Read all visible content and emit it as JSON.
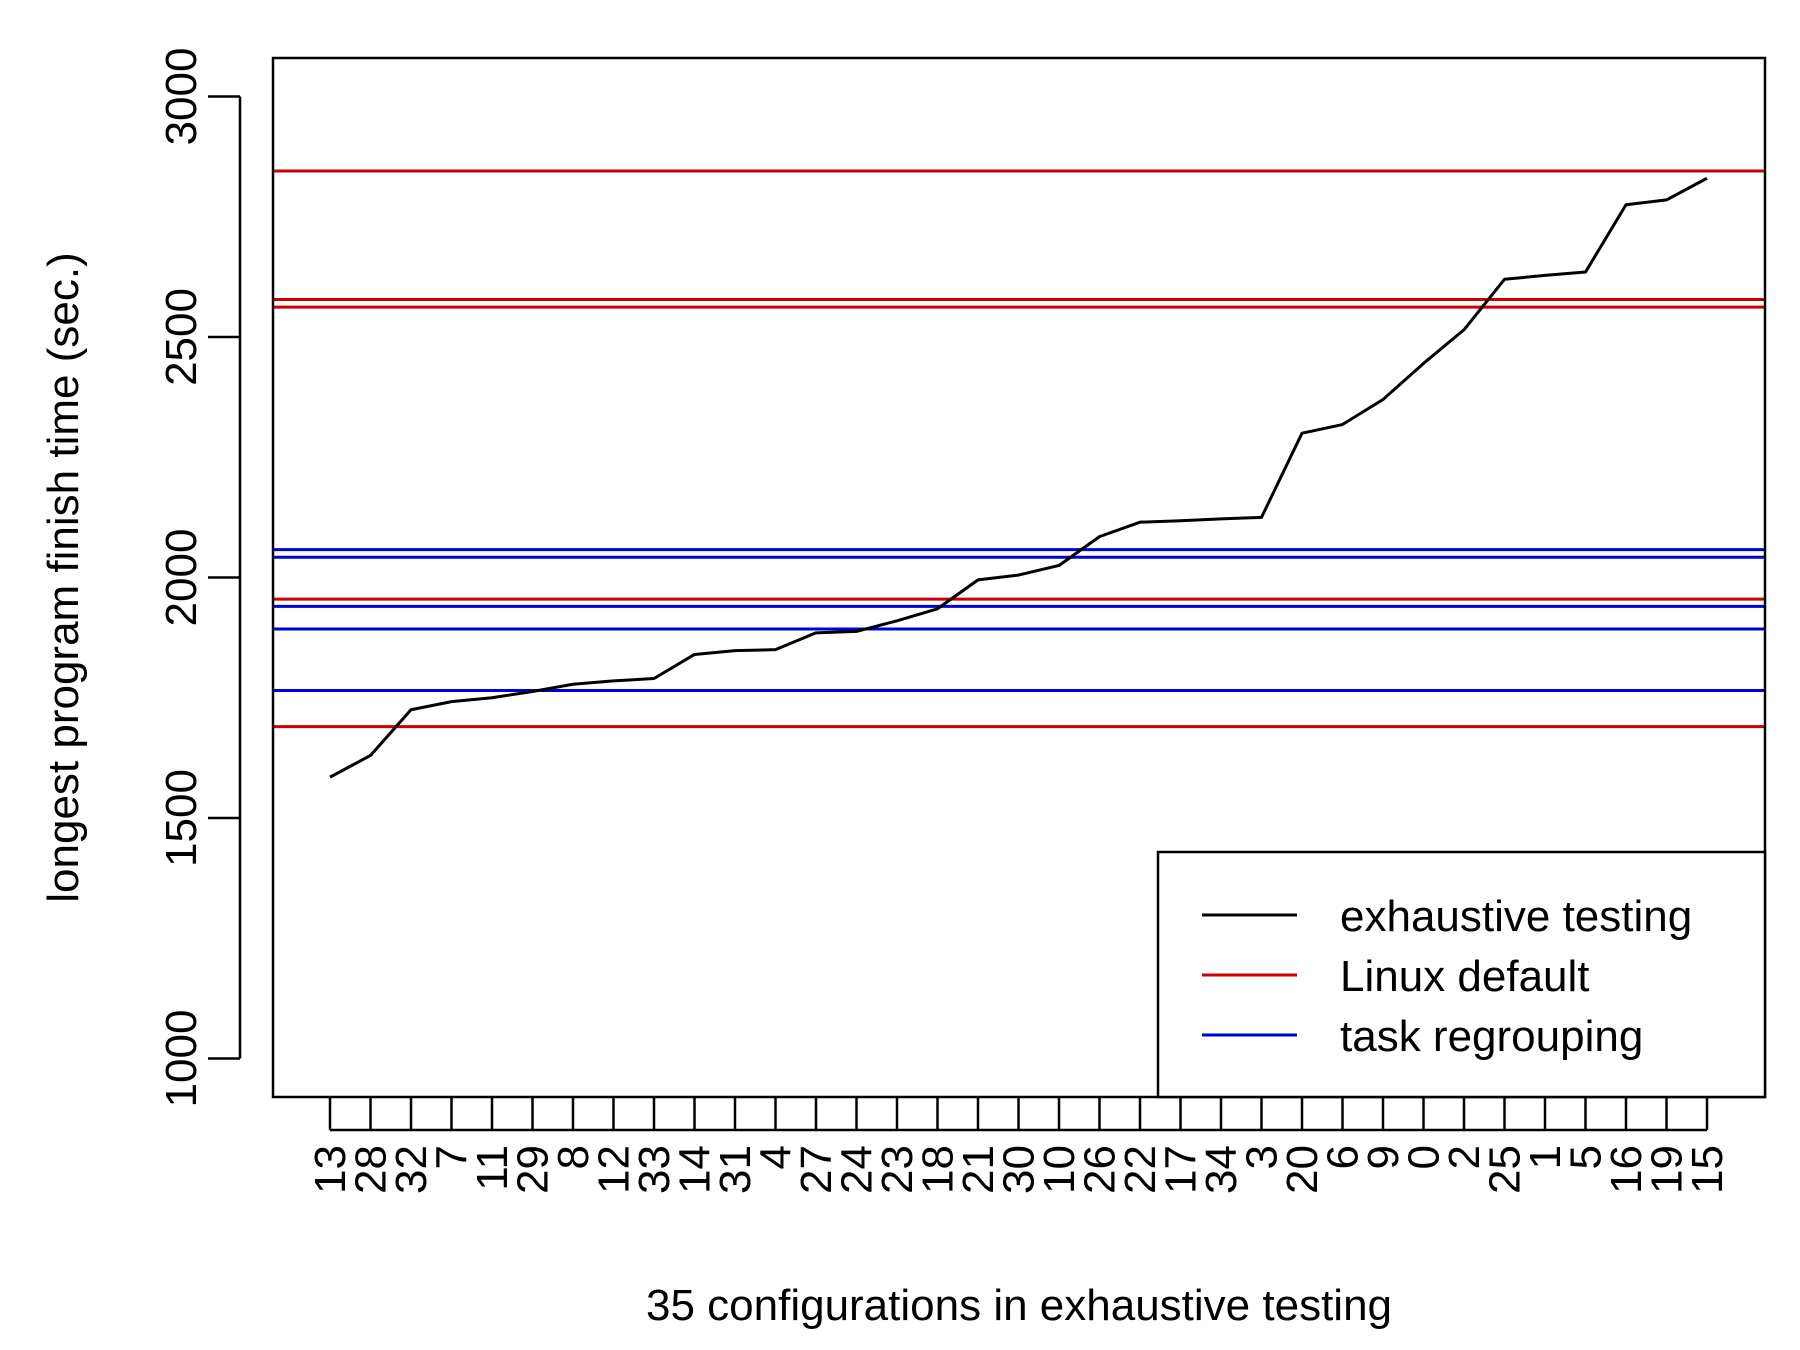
{
  "chart_data": {
    "type": "line",
    "title": "",
    "xlabel": "35 configurations in exhaustive testing",
    "ylabel": "longest program finish time (sec.)",
    "ylim": [
      920,
      3080
    ],
    "yticks": [
      1000,
      1500,
      2000,
      2500,
      3000
    ],
    "categories": [
      "13",
      "28",
      "32",
      "7",
      "11",
      "29",
      "8",
      "12",
      "33",
      "14",
      "31",
      "4",
      "27",
      "24",
      "23",
      "18",
      "21",
      "30",
      "10",
      "26",
      "22",
      "17",
      "34",
      "3",
      "20",
      "6",
      "9",
      "0",
      "2",
      "25",
      "1",
      "5",
      "16",
      "19",
      "15"
    ],
    "series": [
      {
        "name": "exhaustive testing",
        "color": "#000000",
        "values": [
          1585,
          1630,
          1725,
          1742,
          1750,
          1763,
          1778,
          1785,
          1790,
          1840,
          1848,
          1850,
          1885,
          1888,
          1910,
          1935,
          1995,
          2005,
          2025,
          2085,
          2115,
          2118,
          2122,
          2125,
          2300,
          2318,
          2370,
          2445,
          2515,
          2620,
          2628,
          2635,
          2775,
          2785,
          2830
        ]
      }
    ],
    "hlines": [
      {
        "name": "Linux default",
        "color": "#cc0000",
        "values": [
          2845,
          2578,
          2562,
          1955,
          1690
        ]
      },
      {
        "name": "task regrouping",
        "color": "#0000dd",
        "values": [
          2058,
          2042,
          1940,
          1893,
          1765
        ]
      }
    ],
    "legend": {
      "position": "bottom-right",
      "entries": [
        {
          "label": "exhaustive testing",
          "color": "#000000"
        },
        {
          "label": "Linux default",
          "color": "#cc0000"
        },
        {
          "label": "task regrouping",
          "color": "#0000dd"
        }
      ]
    },
    "grid": false
  }
}
